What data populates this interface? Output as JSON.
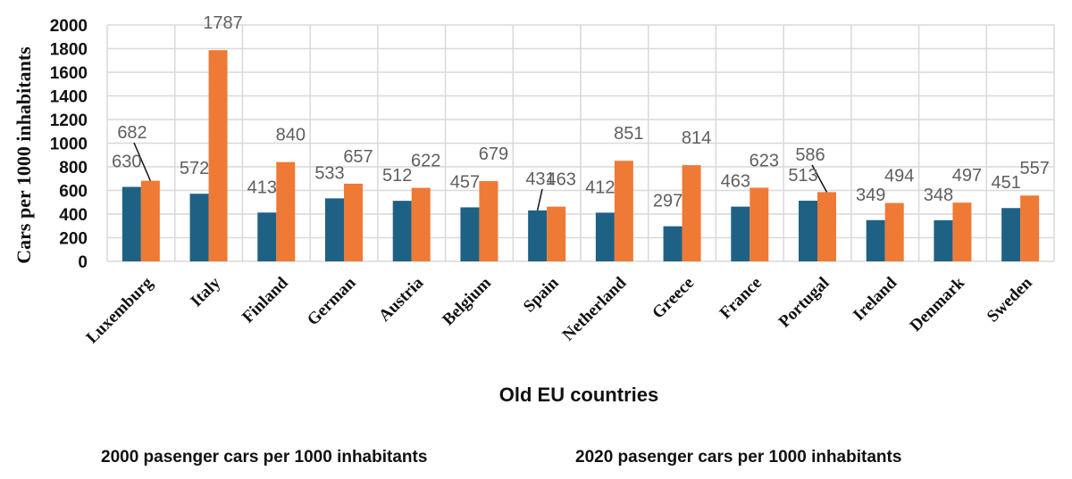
{
  "chart_data": {
    "type": "bar",
    "title": "",
    "xlabel": "Old EU countries",
    "ylabel": "Cars per 1000 inhabitants",
    "ylim": [
      0,
      2000
    ],
    "yticks": [
      "0",
      "200",
      "400",
      "600",
      "800",
      "1000",
      "1200",
      "1400",
      "1600",
      "1800",
      "2000"
    ],
    "grid": true,
    "legend_position": "bottom",
    "categories": [
      "Luxemburg",
      "Italy",
      "Finland",
      "German",
      "Austria",
      "Belgium",
      "Spain",
      "Netherland",
      "Greece",
      "France",
      "Portugal",
      "Ireland",
      "Denmark",
      "Sweden"
    ],
    "series": [
      {
        "name": "2000 pasenger cars per 1000 inhabitants",
        "color": "#1f6184",
        "values": [
          630,
          572,
          413,
          533,
          512,
          457,
          431,
          412,
          297,
          463,
          513,
          349,
          348,
          451
        ]
      },
      {
        "name": "2020 pasenger cars per 1000 inhabitants",
        "color": "#ef7a35",
        "values": [
          682,
          1787,
          840,
          657,
          622,
          679,
          463,
          851,
          814,
          623,
          586,
          494,
          497,
          557
        ]
      }
    ]
  }
}
